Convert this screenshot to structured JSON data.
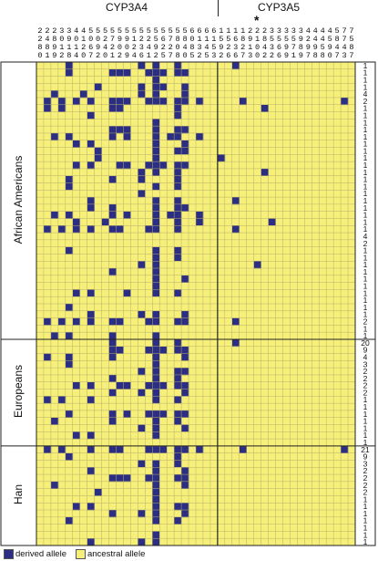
{
  "genes": [
    {
      "name": "CYP3A4",
      "color": "#2b2e83"
    },
    {
      "name": "CYP3A5",
      "color": "#2b2e83"
    }
  ],
  "star_marker": "*",
  "colors": {
    "derived": "#2b2e83",
    "ancestral": "#f6f07a",
    "grid": "#b8b06a",
    "border": "#222222"
  },
  "legend": {
    "derived_label": "derived allele",
    "ancestral_label": "ancestral allele"
  },
  "groups": [
    {
      "name": "African Americans",
      "counts": [
        "1",
        "1",
        "1",
        "1",
        "4",
        "2",
        "1",
        "1",
        "1",
        "1",
        "1",
        "1",
        "1",
        "1",
        "1",
        "1",
        "1",
        "1",
        "1",
        "1",
        "1",
        "1",
        "1",
        "1",
        "4",
        "2",
        "1",
        "1",
        "1",
        "1",
        "1",
        "1",
        "1",
        "1",
        "1",
        "1",
        "2",
        "1",
        "1"
      ]
    },
    {
      "name": "Europeans",
      "counts": [
        "20",
        "9",
        "4",
        "3",
        "2",
        "2",
        "2",
        "2",
        "1",
        "1",
        "1",
        "1",
        "1",
        "1",
        "1"
      ]
    },
    {
      "name": "Han",
      "counts": [
        "21",
        "9",
        "3",
        "2",
        "2",
        "2",
        "2",
        "1",
        "1",
        "1",
        "1",
        "1",
        "1",
        "1"
      ]
    }
  ],
  "chart_data": {
    "type": "heatmap",
    "gene_columns": {
      "CYP3A4": 25,
      "CYP3A5": 19
    },
    "column_positions": [
      "2280",
      "2481",
      "2899",
      "3012",
      "3918",
      "4014",
      "4120",
      "5067",
      "5092",
      "5240",
      "5721",
      "5902",
      "5909",
      "5124",
      "5236",
      "5241",
      "5592",
      "5625",
      "5727",
      "5808",
      "5840",
      "6085",
      "6132",
      "6145",
      "6153",
      "1592",
      "1526",
      "1636",
      "1827",
      "2913",
      "2100",
      "2842",
      "3532",
      "3566",
      "3599",
      "3571",
      "3989",
      "4297",
      "4498",
      "4458",
      "4590",
      "5847",
      "7743",
      "7587"
    ],
    "legend": [
      "derived allele",
      "ancestral allele"
    ],
    "rows": [
      "00001000000000101001000000010000000000000000",
      "00001000001110011101100000000000000000000000",
      "00000000000000001000000000000000000000000000",
      "00000000100000101100100000000000000000000000",
      "00100010000000101000100000000000000000000000",
      "01010101001110011101101000001000000000000010",
      "01010000001100000001000000000001000000000000",
      "00000001000000000001000000000000000000000000",
      "00000000000000001000000000000000000000000000",
      "00000000001110001001100000000000000000000000",
      "00101000001010001011001000000000000000000000",
      "00000101000000001000100000000000000000000000",
      "00000000100000001001100000000000000000000000",
      "00000000100000001000000001000000000000000000",
      "00000101000110011101100000000000000000000000",
      "00000000000000101001000000000001000000000000",
      "00001000001000100001000000000000000000000000",
      "00001000000000001001000000000000000000000000",
      "00000000000000100000000000000000000000000000",
      "00000001000000001001000000010000000000000000",
      "00000001001000001001100000000000000000000000",
      "00101000001010001011001000000000000000000000",
      "00000100010000001001001000000000100000000000",
      "01010101001100011001000000010000000000000000",
      "00000000000000000000000000000000000000000000",
      "00000000000000000000000000000000000000000000",
      "00001000000000001001000000000000000000000000",
      "00000000000000001001000000000000000000000000",
      "00000000000000101000000000000010000000000000",
      "00000000001000001000000000000000000000000000",
      "00000000000000001000100000000000000000000000",
      "00000000000000001000000000000000000000000000",
      "00000101000010001001000000000000000000000000",
      "00000000000000000000000000000000000000000000",
      "00001000000000000000000000000000000000000000",
      "00000001000000101000100000000000000000000000",
      "01010101001100011001100000010000000000000000",
      "00000000000000000000000000000000000000000000",
      "00101000001000001000000000000000000000000000",
      "00000000001000001001000000010000000000000000",
      "00000000001100011101100000000000000000000000",
      "01001000001000001000100000000000000000000000",
      "00001000000000001000000000000000000000000000",
      "00000000000000101001100000000000000000000000",
      "00000000001000001001000000000000000000000000",
      "00000101000110011101100000000000000000000000",
      "00000000001000101000100000000000000000000000",
      "01010001000000001001000000000000000000000000",
      "00000000000000000000000000000000000000000000",
      "00001000001010011101100000000000000000000000",
      "00100000001000001001000000000000000000000000",
      "00000000000000101000100000000000000000000000",
      "00000101000000001000000000000000000000000000",
      "00000000000000000000000000000000000000000000",
      "01010001001100011101101000001000000000000010",
      "00001000000000000001000000000000000000000000",
      "00000000000000101001000000000000000000000000",
      "00000001000000001000100000000000000000000000",
      "00000000001110011001100000000000000000000000",
      "00100000000000001000100000000000000000000000",
      "00000000100000001000000000000000000000000000",
      "00000000000000001000000000000000000000000000",
      "00000101000000001001100000000000000000000000",
      "00000000001000101000100000000000000000000000",
      "00001000000000001001000000000000000000000000",
      "00000000000000000000000000000000000000000000",
      "00000000000000001000000000000000000000000000",
      "00000001000000101000000000000000000000000000"
    ]
  }
}
